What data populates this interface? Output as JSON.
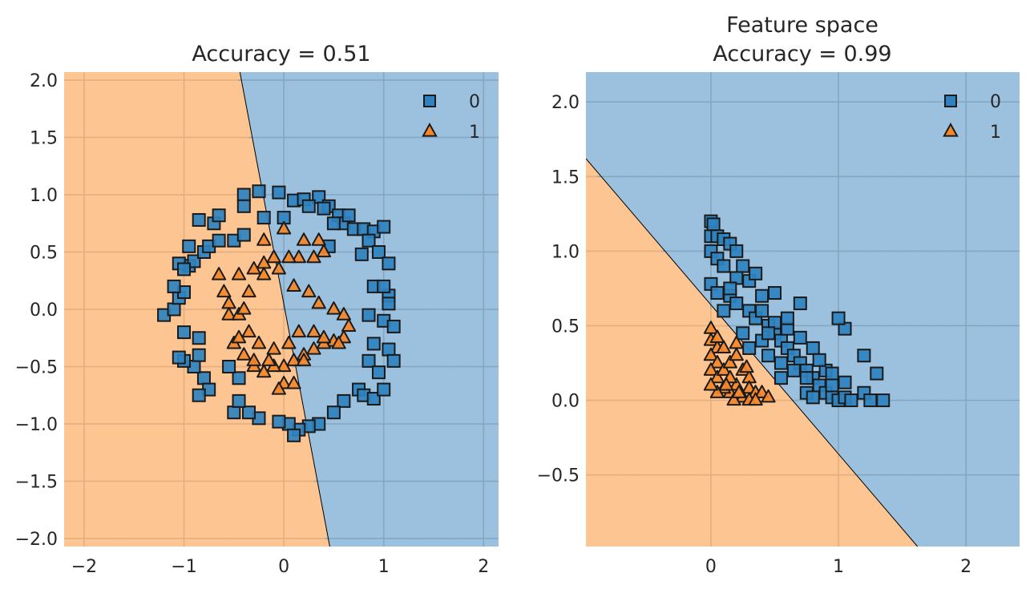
{
  "colors": {
    "class0_region": "#9bc1de",
    "class1_region": "#fdc591",
    "class0_marker": "#2f82bf",
    "class1_marker": "#f5872a",
    "grid_on_class0": "#85a6c1",
    "grid_on_class1": "#e4ae80",
    "marker_edge": "#1a1a1a",
    "text": "#262626"
  },
  "chart_data": [
    {
      "type": "scatter",
      "title": "Accuracy = 0.51",
      "xlabel": "",
      "ylabel": "",
      "xlim": [
        -2.2,
        2.15
      ],
      "ylim": [
        -2.07,
        2.07
      ],
      "xticks": [
        -2,
        -1,
        0,
        1,
        2
      ],
      "xtick_labels": [
        "−2",
        "−1",
        "0",
        "1",
        "2"
      ],
      "yticks": [
        2.0,
        1.5,
        1.0,
        0.5,
        0.0,
        -0.5,
        -1.0,
        -1.5,
        -2.0
      ],
      "ytick_labels": [
        "2.0",
        "1.5",
        "1.0",
        "0.5",
        "0.0",
        "−0.5",
        "−1.0",
        "−1.5",
        "−2.0"
      ],
      "grid": true,
      "legend": "top-right",
      "legend_entries": [
        {
          "label": "0",
          "marker": "square"
        },
        {
          "label": "1",
          "marker": "triangle"
        }
      ],
      "decision_boundary": {
        "points": [
          [
            -0.44,
            2.07
          ],
          [
            0.46,
            -2.07
          ]
        ],
        "left_class": 1,
        "right_class": 0
      },
      "series": [
        {
          "class": 0,
          "marker": "square",
          "points": [
            [
              -0.4,
              1.0
            ],
            [
              -0.25,
              1.03
            ],
            [
              -0.05,
              1.02
            ],
            [
              0.1,
              0.95
            ],
            [
              0.2,
              0.96
            ],
            [
              0.35,
              0.98
            ],
            [
              0.45,
              0.9
            ],
            [
              0.55,
              0.82
            ],
            [
              0.6,
              0.75
            ],
            [
              0.7,
              0.7
            ],
            [
              0.8,
              0.7
            ],
            [
              0.9,
              0.68
            ],
            [
              1.0,
              0.72
            ],
            [
              0.85,
              0.6
            ],
            [
              0.78,
              0.48
            ],
            [
              0.95,
              0.5
            ],
            [
              1.05,
              0.4
            ],
            [
              0.9,
              0.2
            ],
            [
              1.05,
              0.12
            ],
            [
              0.85,
              -0.05
            ],
            [
              1.0,
              -0.1
            ],
            [
              1.1,
              -0.15
            ],
            [
              0.9,
              -0.3
            ],
            [
              1.05,
              -0.35
            ],
            [
              0.85,
              -0.45
            ],
            [
              1.1,
              -0.45
            ],
            [
              0.95,
              -0.55
            ],
            [
              0.75,
              -0.7
            ],
            [
              0.8,
              -0.75
            ],
            [
              0.9,
              -0.78
            ],
            [
              1.0,
              -0.7
            ],
            [
              0.6,
              -0.8
            ],
            [
              0.5,
              -0.9
            ],
            [
              0.35,
              -1.0
            ],
            [
              0.25,
              -1.02
            ],
            [
              0.15,
              -1.05
            ],
            [
              0.05,
              -1.0
            ],
            [
              0.1,
              -1.1
            ],
            [
              -0.05,
              -0.98
            ],
            [
              -0.25,
              -0.95
            ],
            [
              -0.35,
              -0.9
            ],
            [
              -0.5,
              -0.9
            ],
            [
              -0.45,
              -0.8
            ],
            [
              -0.45,
              -0.6
            ],
            [
              -0.55,
              -0.5
            ],
            [
              -0.8,
              -0.6
            ],
            [
              -0.75,
              -0.7
            ],
            [
              -0.85,
              -0.75
            ],
            [
              -0.9,
              -0.5
            ],
            [
              -1.0,
              -0.45
            ],
            [
              -1.05,
              -0.42
            ],
            [
              -0.85,
              -0.4
            ],
            [
              -0.85,
              -0.25
            ],
            [
              -1.0,
              -0.2
            ],
            [
              -1.2,
              -0.05
            ],
            [
              -1.1,
              0.0
            ],
            [
              -1.05,
              0.1
            ],
            [
              -1.0,
              0.15
            ],
            [
              -1.1,
              0.2
            ],
            [
              -0.95,
              0.38
            ],
            [
              -0.9,
              0.42
            ],
            [
              -0.95,
              0.55
            ],
            [
              -1.05,
              0.4
            ],
            [
              -1.0,
              0.35
            ],
            [
              -0.8,
              0.5
            ],
            [
              -0.75,
              0.55
            ],
            [
              -0.65,
              0.6
            ],
            [
              -0.7,
              0.75
            ],
            [
              -0.85,
              0.78
            ],
            [
              -0.65,
              0.82
            ],
            [
              -0.5,
              0.6
            ],
            [
              -0.4,
              0.65
            ],
            [
              -0.4,
              0.9
            ],
            [
              -0.2,
              0.8
            ],
            [
              0.0,
              0.8
            ],
            [
              0.25,
              0.9
            ],
            [
              0.4,
              0.88
            ],
            [
              0.65,
              0.82
            ],
            [
              0.5,
              0.75
            ],
            [
              0.45,
              0.55
            ],
            [
              1.0,
              0.2
            ],
            [
              1.05,
              0.05
            ]
          ]
        },
        {
          "class": 1,
          "marker": "triangle",
          "points": [
            [
              0.0,
              0.7
            ],
            [
              -0.2,
              0.6
            ],
            [
              0.2,
              0.6
            ],
            [
              0.35,
              0.6
            ],
            [
              0.4,
              0.5
            ],
            [
              0.3,
              0.45
            ],
            [
              0.15,
              0.45
            ],
            [
              0.05,
              0.45
            ],
            [
              -0.1,
              0.45
            ],
            [
              -0.2,
              0.4
            ],
            [
              -0.3,
              0.35
            ],
            [
              -0.45,
              0.3
            ],
            [
              -0.65,
              0.3
            ],
            [
              -0.6,
              0.15
            ],
            [
              -0.55,
              0.05
            ],
            [
              -0.55,
              -0.05
            ],
            [
              -0.45,
              -0.05
            ],
            [
              -0.4,
              0.0
            ],
            [
              -0.35,
              0.15
            ],
            [
              -0.2,
              0.3
            ],
            [
              -0.05,
              0.35
            ],
            [
              0.1,
              0.2
            ],
            [
              0.25,
              0.15
            ],
            [
              0.35,
              0.05
            ],
            [
              0.5,
              0.0
            ],
            [
              0.6,
              -0.05
            ],
            [
              0.65,
              -0.15
            ],
            [
              0.6,
              -0.25
            ],
            [
              0.5,
              -0.28
            ],
            [
              0.4,
              -0.3
            ],
            [
              0.3,
              -0.35
            ],
            [
              0.2,
              -0.4
            ],
            [
              0.1,
              -0.45
            ],
            [
              0.0,
              -0.5
            ],
            [
              -0.1,
              -0.5
            ],
            [
              -0.2,
              -0.55
            ],
            [
              -0.3,
              -0.5
            ],
            [
              -0.4,
              -0.4
            ],
            [
              -0.5,
              -0.3
            ],
            [
              -0.45,
              -0.25
            ],
            [
              -0.35,
              -0.2
            ],
            [
              -0.25,
              -0.3
            ],
            [
              -0.1,
              -0.35
            ],
            [
              0.05,
              -0.3
            ],
            [
              0.15,
              -0.2
            ],
            [
              0.0,
              -0.65
            ],
            [
              -0.05,
              -0.7
            ],
            [
              0.1,
              -0.65
            ],
            [
              -0.3,
              -0.45
            ],
            [
              0.3,
              -0.2
            ],
            [
              0.4,
              -0.25
            ],
            [
              0.55,
              -0.3
            ],
            [
              -0.15,
              -0.45
            ],
            [
              0.2,
              -0.45
            ]
          ]
        }
      ]
    },
    {
      "type": "scatter",
      "title": "Feature space",
      "subtitle": "Accuracy = 0.99",
      "xlabel": "",
      "ylabel": "",
      "xlim": [
        -0.98,
        2.42
      ],
      "ylim": [
        -0.98,
        2.2
      ],
      "xticks": [
        0,
        1,
        2
      ],
      "xtick_labels": [
        "0",
        "1",
        "2"
      ],
      "yticks": [
        2.0,
        1.5,
        1.0,
        0.5,
        0.0,
        -0.5
      ],
      "ytick_labels": [
        "2.0",
        "1.5",
        "1.0",
        "0.5",
        "0.0",
        "−0.5"
      ],
      "grid": true,
      "legend": "top-right",
      "legend_entries": [
        {
          "label": "0",
          "marker": "square"
        },
        {
          "label": "1",
          "marker": "triangle"
        }
      ],
      "decision_boundary": {
        "points": [
          [
            -0.98,
            1.62
          ],
          [
            1.62,
            -0.98
          ]
        ],
        "left_class": 1,
        "right_class": 0
      },
      "series": [
        {
          "class": 0,
          "marker": "square",
          "points": [
            [
              0.0,
              1.2
            ],
            [
              0.02,
              1.18
            ],
            [
              0.0,
              1.1
            ],
            [
              0.05,
              1.1
            ],
            [
              0.1,
              1.08
            ],
            [
              0.15,
              1.05
            ],
            [
              0.0,
              1.0
            ],
            [
              0.05,
              0.95
            ],
            [
              0.2,
              1.0
            ],
            [
              0.1,
              0.9
            ],
            [
              0.25,
              0.9
            ],
            [
              0.3,
              0.8
            ],
            [
              0.0,
              0.78
            ],
            [
              0.05,
              0.72
            ],
            [
              0.15,
              0.7
            ],
            [
              0.2,
              0.65
            ],
            [
              0.3,
              0.6
            ],
            [
              0.35,
              0.55
            ],
            [
              0.4,
              0.6
            ],
            [
              0.45,
              0.5
            ],
            [
              0.5,
              0.45
            ],
            [
              0.55,
              0.4
            ],
            [
              0.6,
              0.35
            ],
            [
              0.65,
              0.3
            ],
            [
              0.7,
              0.25
            ],
            [
              0.75,
              0.2
            ],
            [
              0.8,
              0.15
            ],
            [
              0.85,
              0.1
            ],
            [
              0.9,
              0.05
            ],
            [
              0.95,
              0.02
            ],
            [
              1.0,
              0.0
            ],
            [
              1.05,
              0.02
            ],
            [
              1.1,
              0.0
            ],
            [
              1.2,
              0.05
            ],
            [
              1.25,
              0.0
            ],
            [
              1.35,
              0.0
            ],
            [
              1.3,
              0.18
            ],
            [
              1.2,
              0.3
            ],
            [
              1.05,
              0.48
            ],
            [
              1.0,
              0.55
            ],
            [
              0.9,
              0.2
            ],
            [
              0.8,
              0.35
            ],
            [
              0.7,
              0.42
            ],
            [
              0.6,
              0.48
            ],
            [
              0.5,
              0.52
            ],
            [
              0.4,
              0.4
            ],
            [
              0.3,
              0.35
            ],
            [
              0.25,
              0.45
            ],
            [
              0.45,
              0.3
            ],
            [
              0.55,
              0.25
            ],
            [
              0.65,
              0.2
            ],
            [
              0.75,
              0.15
            ],
            [
              0.6,
              0.55
            ],
            [
              0.7,
              0.65
            ],
            [
              0.5,
              0.72
            ],
            [
              0.4,
              0.7
            ],
            [
              0.35,
              0.85
            ],
            [
              0.2,
              0.82
            ],
            [
              0.15,
              0.75
            ],
            [
              0.1,
              0.6
            ],
            [
              0.95,
              0.18
            ],
            [
              1.05,
              0.12
            ],
            [
              0.85,
              0.27
            ],
            [
              0.75,
              0.05
            ],
            [
              0.8,
              0.02
            ],
            [
              0.95,
              0.1
            ],
            [
              0.55,
              0.15
            ],
            [
              0.45,
              0.45
            ]
          ]
        },
        {
          "class": 1,
          "marker": "triangle",
          "points": [
            [
              0.0,
              0.48
            ],
            [
              0.0,
              0.4
            ],
            [
              0.05,
              0.35
            ],
            [
              0.0,
              0.3
            ],
            [
              0.05,
              0.25
            ],
            [
              0.0,
              0.2
            ],
            [
              0.05,
              0.15
            ],
            [
              0.1,
              0.2
            ],
            [
              0.15,
              0.25
            ],
            [
              0.2,
              0.3
            ],
            [
              0.25,
              0.2
            ],
            [
              0.3,
              0.15
            ],
            [
              0.3,
              0.08
            ],
            [
              0.35,
              0.05
            ],
            [
              0.4,
              0.05
            ],
            [
              0.45,
              0.02
            ],
            [
              0.2,
              0.1
            ],
            [
              0.15,
              0.05
            ],
            [
              0.1,
              0.08
            ],
            [
              0.05,
              0.05
            ],
            [
              0.0,
              0.1
            ],
            [
              0.25,
              0.02
            ],
            [
              0.3,
              0.0
            ],
            [
              0.35,
              0.0
            ],
            [
              0.15,
              0.15
            ],
            [
              0.1,
              0.35
            ],
            [
              0.2,
              0.38
            ],
            [
              0.05,
              0.42
            ],
            [
              0.18,
              0.0
            ],
            [
              0.12,
              0.1
            ],
            [
              0.28,
              0.22
            ],
            [
              0.22,
              0.05
            ]
          ]
        }
      ]
    }
  ]
}
